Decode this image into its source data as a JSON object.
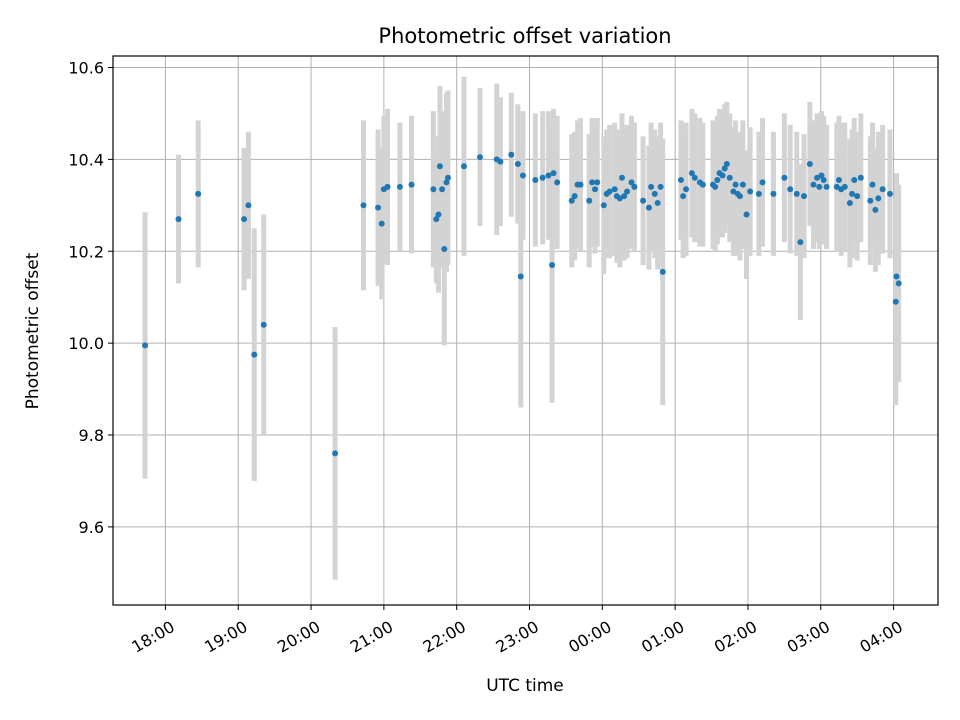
{
  "chart_data": {
    "type": "scatter",
    "title": "Photometric offset variation",
    "xlabel": "UTC time",
    "ylabel": "Photometric offset",
    "grid": true,
    "legend": "none",
    "marker_color": "#1f77b4",
    "errorbar_color": "#d3d3d3",
    "x_unit": "hours of day (UTC), continuing past midnight",
    "xlim": [
      17.28,
      28.61
    ],
    "ylim": [
      9.43,
      10.625
    ],
    "x_ticks": [
      {
        "value": 18,
        "label": "18:00"
      },
      {
        "value": 19,
        "label": "19:00"
      },
      {
        "value": 20,
        "label": "20:00"
      },
      {
        "value": 21,
        "label": "21:00"
      },
      {
        "value": 22,
        "label": "22:00"
      },
      {
        "value": 23,
        "label": "23:00"
      },
      {
        "value": 24,
        "label": "00:00"
      },
      {
        "value": 25,
        "label": "01:00"
      },
      {
        "value": 26,
        "label": "02:00"
      },
      {
        "value": 27,
        "label": "03:00"
      },
      {
        "value": 28,
        "label": "04:00"
      }
    ],
    "y_ticks": [
      {
        "value": 9.6,
        "label": "9.6"
      },
      {
        "value": 9.8,
        "label": "9.8"
      },
      {
        "value": 10.0,
        "label": "10.0"
      },
      {
        "value": 10.2,
        "label": "10.2"
      },
      {
        "value": 10.4,
        "label": "10.4"
      },
      {
        "value": 10.6,
        "label": "10.6"
      }
    ],
    "points": [
      [
        17.72,
        9.995,
        0.29
      ],
      [
        18.18,
        10.27,
        0.14
      ],
      [
        18.45,
        10.325,
        0.16
      ],
      [
        19.08,
        10.27,
        0.155
      ],
      [
        19.14,
        10.3,
        0.16
      ],
      [
        19.22,
        9.975,
        0.275
      ],
      [
        19.35,
        10.04,
        0.24
      ],
      [
        20.33,
        9.76,
        0.275
      ],
      [
        20.72,
        10.3,
        0.185
      ],
      [
        20.92,
        10.295,
        0.17
      ],
      [
        20.97,
        10.26,
        0.165
      ],
      [
        21.0,
        10.335,
        0.16
      ],
      [
        21.05,
        10.34,
        0.17
      ],
      [
        21.22,
        10.34,
        0.14
      ],
      [
        21.38,
        10.345,
        0.15
      ],
      [
        21.68,
        10.335,
        0.17
      ],
      [
        21.72,
        10.27,
        0.14
      ],
      [
        21.75,
        10.28,
        0.17
      ],
      [
        21.77,
        10.385,
        0.175
      ],
      [
        21.8,
        10.335,
        0.17
      ],
      [
        21.83,
        10.205,
        0.21
      ],
      [
        21.86,
        10.35,
        0.195
      ],
      [
        21.88,
        10.36,
        0.19
      ],
      [
        22.1,
        10.385,
        0.195
      ],
      [
        22.32,
        10.405,
        0.15
      ],
      [
        22.55,
        10.4,
        0.165
      ],
      [
        22.6,
        10.395,
        0.14
      ],
      [
        22.75,
        10.41,
        0.135
      ],
      [
        22.84,
        10.39,
        0.13
      ],
      [
        22.88,
        10.145,
        0.285
      ],
      [
        22.91,
        10.365,
        0.14
      ],
      [
        23.08,
        10.355,
        0.145
      ],
      [
        23.18,
        10.36,
        0.145
      ],
      [
        23.26,
        10.365,
        0.14
      ],
      [
        23.31,
        10.17,
        0.3
      ],
      [
        23.33,
        10.37,
        0.14
      ],
      [
        23.38,
        10.35,
        0.145
      ],
      [
        23.58,
        10.31,
        0.145
      ],
      [
        23.62,
        10.32,
        0.14
      ],
      [
        23.66,
        10.345,
        0.14
      ],
      [
        23.7,
        10.345,
        0.145
      ],
      [
        23.82,
        10.31,
        0.145
      ],
      [
        23.86,
        10.35,
        0.14
      ],
      [
        23.9,
        10.335,
        0.14
      ],
      [
        23.93,
        10.35,
        0.14
      ],
      [
        24.02,
        10.3,
        0.15
      ],
      [
        24.06,
        10.325,
        0.14
      ],
      [
        24.1,
        10.33,
        0.145
      ],
      [
        24.17,
        10.335,
        0.145
      ],
      [
        24.2,
        10.32,
        0.145
      ],
      [
        24.24,
        10.315,
        0.15
      ],
      [
        24.27,
        10.36,
        0.14
      ],
      [
        24.3,
        10.32,
        0.14
      ],
      [
        24.34,
        10.33,
        0.145
      ],
      [
        24.4,
        10.35,
        0.145
      ],
      [
        24.44,
        10.34,
        0.14
      ],
      [
        24.56,
        10.31,
        0.14
      ],
      [
        24.64,
        10.295,
        0.135
      ],
      [
        24.67,
        10.34,
        0.14
      ],
      [
        24.72,
        10.325,
        0.14
      ],
      [
        24.76,
        10.305,
        0.145
      ],
      [
        24.8,
        10.34,
        0.14
      ],
      [
        24.83,
        10.155,
        0.29
      ],
      [
        25.08,
        10.355,
        0.13
      ],
      [
        25.11,
        10.32,
        0.135
      ],
      [
        25.15,
        10.335,
        0.145
      ],
      [
        25.23,
        10.37,
        0.14
      ],
      [
        25.27,
        10.36,
        0.14
      ],
      [
        25.34,
        10.35,
        0.14
      ],
      [
        25.38,
        10.345,
        0.135
      ],
      [
        25.52,
        10.345,
        0.14
      ],
      [
        25.55,
        10.34,
        0.14
      ],
      [
        25.58,
        10.355,
        0.14
      ],
      [
        25.61,
        10.37,
        0.14
      ],
      [
        25.65,
        10.365,
        0.135
      ],
      [
        25.68,
        10.38,
        0.14
      ],
      [
        25.71,
        10.39,
        0.135
      ],
      [
        25.75,
        10.36,
        0.14
      ],
      [
        25.8,
        10.33,
        0.14
      ],
      [
        25.83,
        10.345,
        0.14
      ],
      [
        25.86,
        10.325,
        0.135
      ],
      [
        25.89,
        10.32,
        0.14
      ],
      [
        25.93,
        10.345,
        0.14
      ],
      [
        25.98,
        10.28,
        0.14
      ],
      [
        26.03,
        10.33,
        0.14
      ],
      [
        26.15,
        10.325,
        0.135
      ],
      [
        26.2,
        10.35,
        0.14
      ],
      [
        26.35,
        10.325,
        0.135
      ],
      [
        26.5,
        10.36,
        0.14
      ],
      [
        26.58,
        10.335,
        0.14
      ],
      [
        26.67,
        10.325,
        0.135
      ],
      [
        26.72,
        10.22,
        0.17
      ],
      [
        26.77,
        10.32,
        0.135
      ],
      [
        26.85,
        10.39,
        0.135
      ],
      [
        26.9,
        10.345,
        0.14
      ],
      [
        26.95,
        10.36,
        0.14
      ],
      [
        26.98,
        10.34,
        0.135
      ],
      [
        27.01,
        10.365,
        0.14
      ],
      [
        27.04,
        10.355,
        0.14
      ],
      [
        27.08,
        10.34,
        0.135
      ],
      [
        27.22,
        10.34,
        0.14
      ],
      [
        27.25,
        10.355,
        0.14
      ],
      [
        27.28,
        10.335,
        0.145
      ],
      [
        27.33,
        10.34,
        0.14
      ],
      [
        27.4,
        10.305,
        0.14
      ],
      [
        27.43,
        10.325,
        0.14
      ],
      [
        27.46,
        10.355,
        0.135
      ],
      [
        27.5,
        10.32,
        0.14
      ],
      [
        27.55,
        10.36,
        0.14
      ],
      [
        27.68,
        10.31,
        0.14
      ],
      [
        27.71,
        10.345,
        0.135
      ],
      [
        27.75,
        10.29,
        0.135
      ],
      [
        27.79,
        10.315,
        0.145
      ],
      [
        27.85,
        10.335,
        0.14
      ],
      [
        27.95,
        10.325,
        0.14
      ],
      [
        28.03,
        10.09,
        0.225
      ],
      [
        28.04,
        10.145,
        0.225
      ],
      [
        28.07,
        10.13,
        0.215
      ]
    ]
  }
}
